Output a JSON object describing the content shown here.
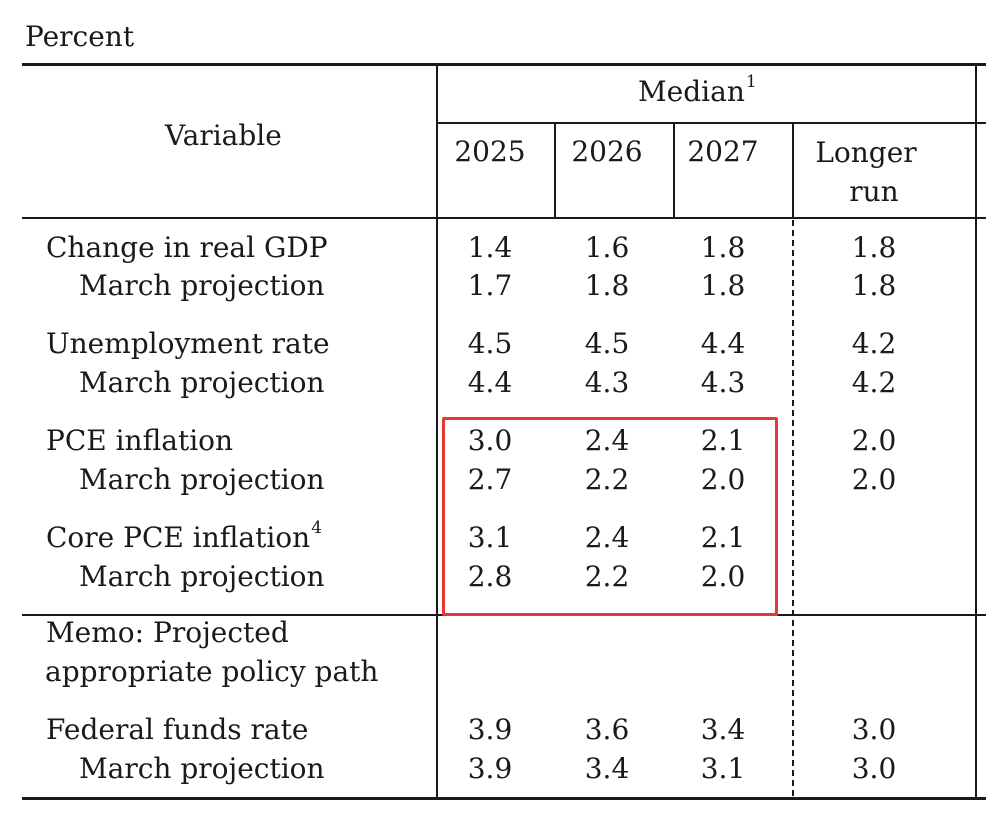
{
  "caption": "Percent",
  "header": {
    "variable": "Variable",
    "median": "Median",
    "median_note": "1",
    "years": [
      "2025",
      "2026",
      "2027"
    ],
    "longer_run_line1": "Longer",
    "longer_run_line2": "run"
  },
  "rows": [
    {
      "label": "Change in real GDP",
      "values": [
        "1.4",
        "1.6",
        "1.8"
      ],
      "longer_run": "1.8"
    },
    {
      "label": "March projection",
      "values": [
        "1.7",
        "1.8",
        "1.8"
      ],
      "longer_run": "1.8"
    },
    {
      "label": "Unemployment rate",
      "values": [
        "4.5",
        "4.5",
        "4.4"
      ],
      "longer_run": "4.2"
    },
    {
      "label": "March projection",
      "values": [
        "4.4",
        "4.3",
        "4.3"
      ],
      "longer_run": "4.2"
    },
    {
      "label": "PCE inflation",
      "values": [
        "3.0",
        "2.4",
        "2.1"
      ],
      "longer_run": "2.0"
    },
    {
      "label": "March projection",
      "values": [
        "2.7",
        "2.2",
        "2.0"
      ],
      "longer_run": "2.0"
    },
    {
      "label": "Core PCE inflation",
      "note": "4",
      "values": [
        "3.1",
        "2.4",
        "2.1"
      ],
      "longer_run": ""
    },
    {
      "label": "March projection",
      "values": [
        "2.8",
        "2.2",
        "2.0"
      ],
      "longer_run": ""
    },
    {
      "label": "Federal funds rate",
      "values": [
        "3.9",
        "3.6",
        "3.4"
      ],
      "longer_run": "3.0"
    },
    {
      "label": "March projection",
      "values": [
        "3.9",
        "3.4",
        "3.1"
      ],
      "longer_run": "3.0"
    }
  ],
  "memo": {
    "line1": "Memo: Projected",
    "line2": "appropriate policy path"
  },
  "colors": {
    "text": "#1a1a1a",
    "highlight": "#e53935"
  }
}
